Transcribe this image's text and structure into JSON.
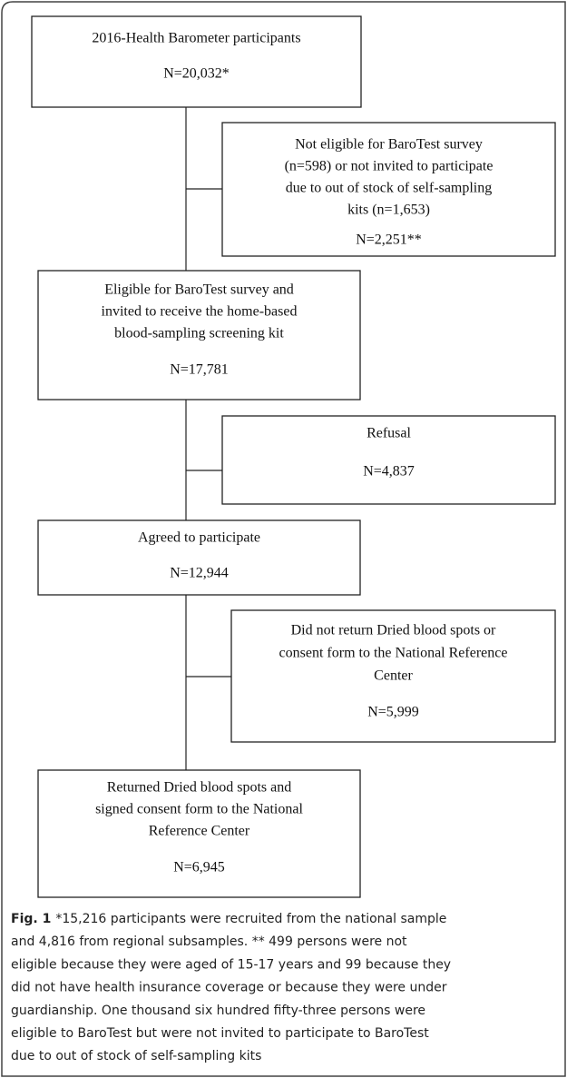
{
  "nodes": [
    {
      "lines": [
        "2016-Health Barometer participants",
        "N=20,032*"
      ]
    },
    {
      "lines": [
        "Not eligible for BaroTest survey",
        "(n=598) or not invited to participate",
        "due to out of stock of self-sampling",
        "kits (n=1,653)",
        "N=2,251**"
      ]
    },
    {
      "lines": [
        "Eligible for BaroTest survey and",
        "invited to receive the home-based",
        "blood-sampling screening kit",
        "N=17,781"
      ]
    },
    {
      "lines": [
        "Refusal",
        "N=4,837"
      ]
    },
    {
      "lines": [
        "Agreed to participate",
        "N=12,944"
      ]
    },
    {
      "lines": [
        "Did not return Dried blood spots or",
        "consent form to the National Reference",
        "Center",
        "N=5,999"
      ]
    },
    {
      "lines": [
        "Returned Dried blood spots and",
        "signed consent form to the National",
        "Reference Center",
        "N=6,945"
      ]
    }
  ],
  "caption": {
    "label": "Fig. 1",
    "lines": [
      "*15,216 participants were recruited from the national sample",
      "and 4,816 from regional subsamples. ** 499 persons were not",
      "eligible because they were aged of 15-17 years and 99 because they",
      "did not have health insurance coverage or because they were under",
      "guardianship. One thousand six hundred fifty-three persons were",
      "eligible to BaroTest but were not invited to participate to BaroTest",
      "due to out of stock of self-sampling kits"
    ]
  }
}
